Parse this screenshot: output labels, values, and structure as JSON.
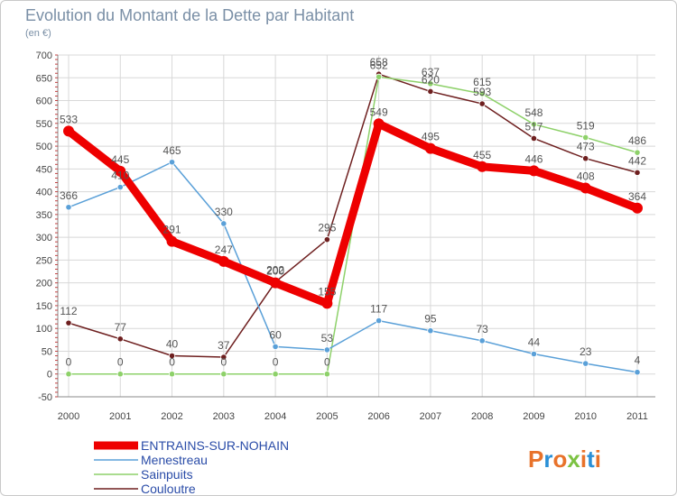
{
  "title": "Evolution du Montant de la Dette par Habitant",
  "subtitle": "(en €)",
  "logo": {
    "text": "Proxiti",
    "colors": [
      "#e8722a",
      "#2a8fd6",
      "#e8722a",
      "#7cc242",
      "#e8722a",
      "#2a8fd6",
      "#e8722a"
    ]
  },
  "chart_data": {
    "type": "line",
    "title": "Evolution du Montant de la Dette par Habitant",
    "subtitle": "(en €)",
    "x": [
      "2000",
      "2001",
      "2002",
      "2003",
      "2004",
      "2005",
      "2006",
      "2007",
      "2008",
      "2009",
      "2010",
      "2011"
    ],
    "ylim": [
      -50,
      700
    ],
    "yticks": [
      -50,
      0,
      50,
      100,
      150,
      200,
      250,
      300,
      350,
      400,
      450,
      500,
      550,
      600,
      650,
      700
    ],
    "grid": true,
    "legend": "bottom-left",
    "series": [
      {
        "name": "ENTRAINS-SUR-NOHAIN",
        "color": "#ee0000",
        "values": [
          533,
          445,
          291,
          247,
          200,
          155,
          549,
          495,
          455,
          446,
          408,
          364
        ]
      },
      {
        "name": "Menestreau",
        "color": "#5aa0d8",
        "values": [
          366,
          410,
          465,
          330,
          60,
          53,
          117,
          95,
          73,
          44,
          23,
          4
        ]
      },
      {
        "name": "Sainpuits",
        "color": "#8ed16a",
        "values": [
          0,
          0,
          0,
          0,
          0,
          0,
          652,
          637,
          615,
          548,
          519,
          486
        ]
      },
      {
        "name": "Couloutre",
        "color": "#6e1f1f",
        "values": [
          112,
          77,
          40,
          37,
          202,
          295,
          658,
          620,
          593,
          517,
          473,
          442
        ]
      }
    ]
  }
}
